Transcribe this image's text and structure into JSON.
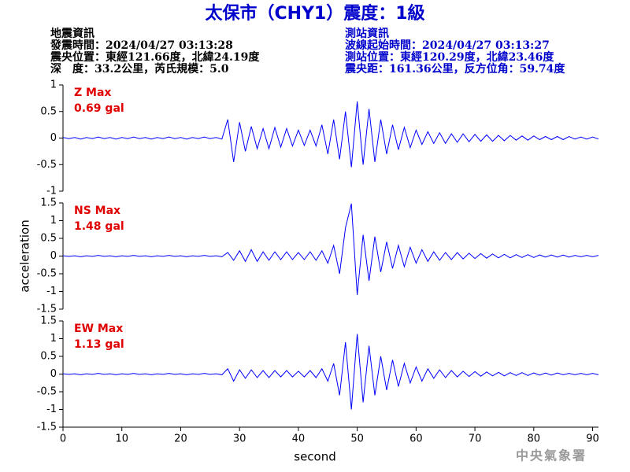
{
  "title": "太保市（CHY1）震度：1級",
  "info_left": [
    "地震資訊",
    "發震時間：2024/04/27 03:13:28",
    "震央位置：東經121.66度，北緯24.19度",
    "深　度：33.2公里，芮氏規模：5.0"
  ],
  "info_right": [
    "測站資訊",
    "波線起始時間：2024/04/27 03:13:27",
    "測站位置：東經120.29度，北緯23.46度",
    "震央距：161.36公里，反方位角：59.74度"
  ],
  "credit": "中央氣象署",
  "chart_data": [
    {
      "type": "line",
      "annotations": [
        "Z Max",
        "0.69 gal"
      ],
      "xlim": [
        0,
        91
      ],
      "ylim": [
        -1,
        1
      ],
      "yticks": [
        -1,
        -0.5,
        0,
        0.5,
        1
      ],
      "x": [
        0,
        1,
        2,
        3,
        4,
        5,
        6,
        7,
        8,
        9,
        10,
        11,
        12,
        13,
        14,
        15,
        16,
        17,
        18,
        19,
        20,
        21,
        22,
        23,
        24,
        25,
        26,
        27,
        28,
        29,
        30,
        31,
        32,
        33,
        34,
        35,
        36,
        37,
        38,
        39,
        40,
        41,
        42,
        43,
        44,
        45,
        46,
        47,
        48,
        49,
        50,
        51,
        52,
        53,
        54,
        55,
        56,
        57,
        58,
        59,
        60,
        61,
        62,
        63,
        64,
        65,
        66,
        67,
        68,
        69,
        70,
        71,
        72,
        73,
        74,
        75,
        76,
        77,
        78,
        79,
        80,
        81,
        82,
        83,
        84,
        85,
        86,
        87,
        88,
        89,
        90,
        91
      ],
      "series": [
        {
          "color": "#0000ff",
          "values": [
            0.01,
            -0.01,
            0.01,
            -0.02,
            0.01,
            -0.01,
            0.02,
            -0.01,
            0.01,
            -0.02,
            0.01,
            -0.01,
            0.02,
            -0.01,
            0.01,
            -0.02,
            0.01,
            -0.01,
            0.02,
            -0.01,
            0.01,
            -0.02,
            0.01,
            -0.01,
            0.02,
            -0.01,
            0.01,
            -0.02,
            0.35,
            -0.45,
            0.3,
            -0.25,
            0.22,
            -0.2,
            0.18,
            -0.2,
            0.2,
            -0.17,
            0.18,
            -0.15,
            0.15,
            -0.14,
            0.15,
            -0.15,
            0.25,
            -0.3,
            0.35,
            -0.4,
            0.5,
            -0.55,
            0.69,
            -0.5,
            0.55,
            -0.45,
            0.35,
            -0.3,
            0.25,
            -0.22,
            0.2,
            -0.18,
            0.15,
            -0.12,
            0.12,
            -0.1,
            0.1,
            -0.1,
            0.08,
            -0.08,
            0.08,
            -0.07,
            0.07,
            -0.06,
            0.06,
            -0.06,
            0.05,
            -0.05,
            0.05,
            -0.04,
            0.04,
            -0.04,
            0.04,
            -0.03,
            0.03,
            -0.03,
            0.03,
            -0.03,
            0.03,
            -0.02,
            0.02,
            -0.02,
            0.02,
            -0.02
          ]
        }
      ]
    },
    {
      "type": "line",
      "annotations": [
        "NS Max",
        "1.48 gal"
      ],
      "ylabel": "acceleration",
      "xlim": [
        0,
        91
      ],
      "ylim": [
        -1.5,
        1.5
      ],
      "yticks": [
        -1.5,
        -1,
        -0.5,
        0,
        0.5,
        1,
        1.5
      ],
      "x": [
        0,
        1,
        2,
        3,
        4,
        5,
        6,
        7,
        8,
        9,
        10,
        11,
        12,
        13,
        14,
        15,
        16,
        17,
        18,
        19,
        20,
        21,
        22,
        23,
        24,
        25,
        26,
        27,
        28,
        29,
        30,
        31,
        32,
        33,
        34,
        35,
        36,
        37,
        38,
        39,
        40,
        41,
        42,
        43,
        44,
        45,
        46,
        47,
        48,
        49,
        50,
        51,
        52,
        53,
        54,
        55,
        56,
        57,
        58,
        59,
        60,
        61,
        62,
        63,
        64,
        65,
        66,
        67,
        68,
        69,
        70,
        71,
        72,
        73,
        74,
        75,
        76,
        77,
        78,
        79,
        80,
        81,
        82,
        83,
        84,
        85,
        86,
        87,
        88,
        89,
        90,
        91
      ],
      "series": [
        {
          "color": "#0000ff",
          "values": [
            0.01,
            -0.01,
            0.01,
            -0.02,
            0.01,
            -0.01,
            0.02,
            -0.01,
            0.01,
            -0.02,
            0.01,
            -0.01,
            0.02,
            -0.01,
            0.01,
            -0.02,
            0.01,
            -0.01,
            0.02,
            -0.01,
            0.01,
            -0.02,
            0.01,
            -0.01,
            0.02,
            -0.01,
            0.01,
            -0.02,
            0.1,
            -0.12,
            0.15,
            -0.15,
            0.18,
            -0.15,
            0.12,
            -0.12,
            0.12,
            -0.1,
            0.12,
            -0.1,
            0.1,
            -0.1,
            0.12,
            -0.12,
            0.15,
            -0.2,
            0.3,
            -0.5,
            0.8,
            1.48,
            -1.1,
            0.6,
            -0.7,
            0.55,
            -0.45,
            0.4,
            -0.35,
            0.3,
            -0.3,
            0.25,
            -0.2,
            0.18,
            -0.15,
            0.12,
            -0.12,
            0.1,
            -0.1,
            0.1,
            -0.08,
            0.08,
            -0.07,
            0.07,
            -0.06,
            0.06,
            -0.05,
            0.05,
            -0.05,
            0.04,
            -0.04,
            0.04,
            -0.04,
            0.03,
            -0.03,
            0.03,
            -0.03,
            0.03,
            -0.03,
            0.02,
            -0.02,
            0.02,
            -0.02,
            0.02
          ]
        }
      ]
    },
    {
      "type": "line",
      "annotations": [
        "EW Max",
        "1.13 gal"
      ],
      "xlabel": "second",
      "xlim": [
        0,
        91
      ],
      "xticks": [
        0,
        10,
        20,
        30,
        40,
        50,
        60,
        70,
        80,
        90
      ],
      "ylim": [
        -1.5,
        1.5
      ],
      "yticks": [
        -1.5,
        -1,
        -0.5,
        0,
        0.5,
        1,
        1.5
      ],
      "x": [
        0,
        1,
        2,
        3,
        4,
        5,
        6,
        7,
        8,
        9,
        10,
        11,
        12,
        13,
        14,
        15,
        16,
        17,
        18,
        19,
        20,
        21,
        22,
        23,
        24,
        25,
        26,
        27,
        28,
        29,
        30,
        31,
        32,
        33,
        34,
        35,
        36,
        37,
        38,
        39,
        40,
        41,
        42,
        43,
        44,
        45,
        46,
        47,
        48,
        49,
        50,
        51,
        52,
        53,
        54,
        55,
        56,
        57,
        58,
        59,
        60,
        61,
        62,
        63,
        64,
        65,
        66,
        67,
        68,
        69,
        70,
        71,
        72,
        73,
        74,
        75,
        76,
        77,
        78,
        79,
        80,
        81,
        82,
        83,
        84,
        85,
        86,
        87,
        88,
        89,
        90,
        91
      ],
      "series": [
        {
          "color": "#0000ff",
          "values": [
            0.01,
            -0.01,
            0.01,
            -0.02,
            0.01,
            -0.01,
            0.02,
            -0.01,
            0.01,
            -0.02,
            0.01,
            -0.01,
            0.02,
            -0.01,
            0.01,
            -0.02,
            0.01,
            -0.01,
            0.02,
            -0.01,
            0.01,
            -0.02,
            0.01,
            -0.01,
            0.02,
            -0.01,
            0.01,
            -0.02,
            0.15,
            -0.2,
            0.12,
            -0.12,
            0.12,
            -0.1,
            0.1,
            -0.1,
            0.1,
            -0.08,
            0.1,
            -0.08,
            0.08,
            -0.08,
            0.1,
            -0.1,
            0.15,
            -0.2,
            0.3,
            -0.6,
            0.9,
            -1.0,
            1.13,
            -0.8,
            0.8,
            -0.6,
            0.5,
            -0.45,
            0.4,
            -0.35,
            0.3,
            -0.25,
            0.2,
            -0.2,
            0.15,
            -0.12,
            0.12,
            -0.1,
            0.1,
            -0.08,
            0.08,
            -0.07,
            0.07,
            -0.06,
            0.06,
            -0.05,
            0.05,
            -0.05,
            0.04,
            -0.04,
            0.04,
            -0.04,
            0.03,
            -0.03,
            0.03,
            -0.03,
            0.03,
            -0.02,
            0.02,
            -0.02,
            0.02,
            -0.02,
            0.02,
            -0.02
          ]
        }
      ]
    }
  ]
}
